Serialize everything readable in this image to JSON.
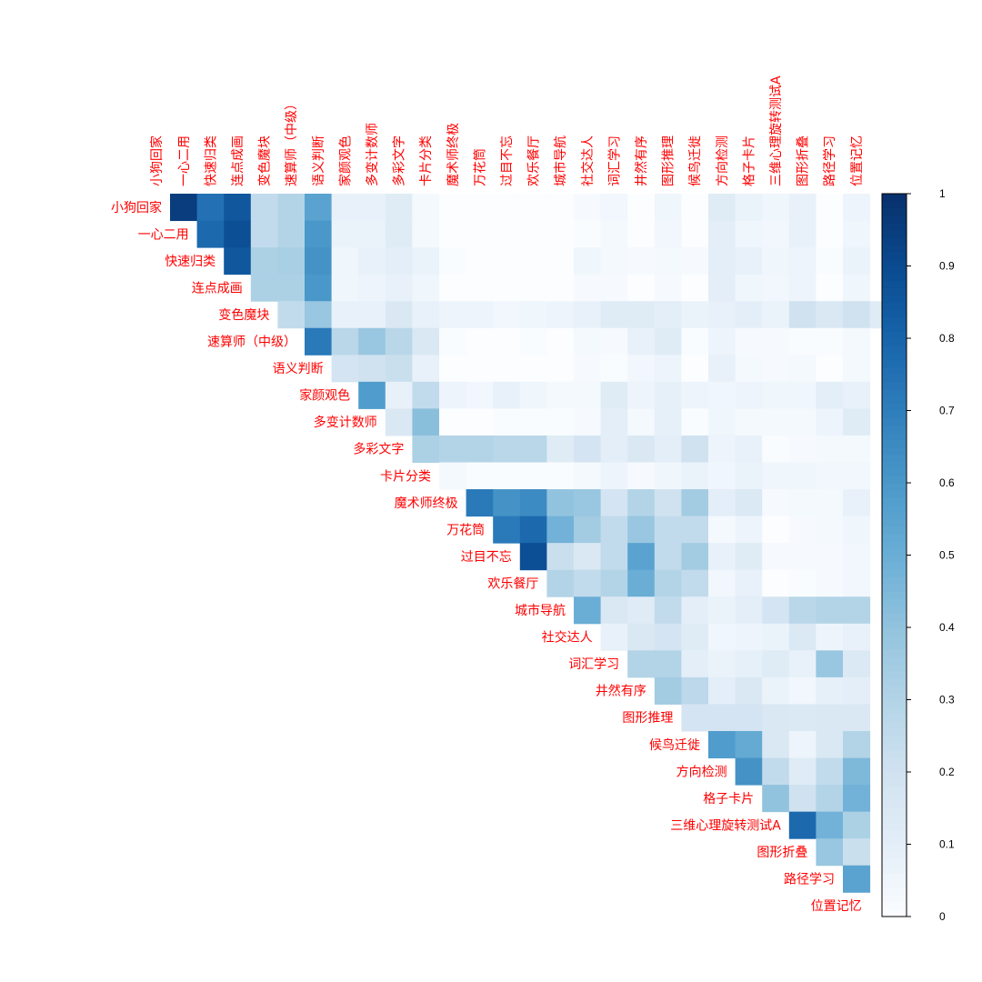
{
  "chart_data": {
    "type": "heatmap",
    "subtype": "correlation-upper-triangle-no-diagonal",
    "variables": [
      "小狗回家",
      "一心二用",
      "快速归类",
      "连点成画",
      "变色魔块",
      "速算师（中级）",
      "语义判断",
      "家颜观色",
      "多变计数师",
      "多彩文字",
      "卡片分类",
      "魔术师终极",
      "万花筒",
      "过目不忘",
      "欢乐餐厅",
      "城市导航",
      "社交达人",
      "词汇学习",
      "井然有序",
      "图形推理",
      "候鸟迁徙",
      "方向检测",
      "格子卡片",
      "三维心理旋转测试A",
      "图形折叠",
      "路径学习",
      "位置记忆"
    ],
    "upper_triangle_rows": [
      [
        0.95,
        0.75,
        0.85,
        0.25,
        0.3,
        0.55,
        0.08,
        0.08,
        0.12,
        0.03,
        0,
        0,
        0,
        0,
        0,
        0.02,
        0.04,
        0,
        0.05,
        0,
        0.12,
        0.07,
        0.05,
        0.08,
        0,
        0.06
      ],
      [
        0.78,
        0.88,
        0.25,
        0.3,
        0.6,
        0.07,
        0.07,
        0.12,
        0.03,
        0,
        0,
        0,
        0,
        0,
        0.01,
        0.03,
        0,
        0.04,
        0,
        0.1,
        0.05,
        0.04,
        0.08,
        0,
        0.05
      ],
      [
        0.85,
        0.32,
        0.33,
        0.62,
        0.05,
        0.08,
        0.1,
        0.07,
        0.01,
        0,
        0,
        0,
        0,
        0.05,
        0.03,
        0.02,
        0.03,
        0.02,
        0.1,
        0.08,
        0.05,
        0.06,
        0.01,
        0.07
      ],
      [
        0.32,
        0.32,
        0.6,
        0.05,
        0.06,
        0.08,
        0.05,
        0,
        0,
        0,
        0,
        0,
        0.02,
        0.02,
        0,
        0.02,
        0,
        0.1,
        0.05,
        0.04,
        0.06,
        0,
        0.05
      ],
      [
        0.25,
        0.38,
        0.08,
        0.08,
        0.15,
        0.08,
        0.06,
        0.06,
        0.04,
        0.05,
        0.06,
        0.08,
        0.12,
        0.12,
        0.1,
        0.07,
        0.08,
        0.1,
        0.07,
        0.2,
        0.15,
        0.2,
        0.12
      ],
      [
        0.72,
        0.28,
        0.38,
        0.28,
        0.15,
        0.01,
        0,
        0,
        0.01,
        0,
        0.03,
        0.02,
        0.08,
        0.12,
        0.01,
        0.06,
        0.02,
        0.02,
        0.01,
        0.01,
        0.03
      ],
      [
        0.18,
        0.2,
        0.22,
        0.08,
        0,
        0,
        0,
        0,
        0,
        0.02,
        0.01,
        0.04,
        0.06,
        0,
        0.08,
        0.03,
        0.02,
        0.03,
        0,
        0.03
      ],
      [
        0.58,
        0.08,
        0.25,
        0.06,
        0.04,
        0.08,
        0.05,
        0.03,
        0.03,
        0.12,
        0.06,
        0.09,
        0.06,
        0.05,
        0.06,
        0.05,
        0.05,
        0.1,
        0.08
      ],
      [
        0.15,
        0.42,
        0,
        0,
        0.01,
        0.01,
        0.01,
        0.02,
        0.1,
        0.03,
        0.09,
        0.01,
        0.05,
        0.03,
        0.03,
        0.03,
        0.06,
        0.12
      ],
      [
        0.32,
        0.3,
        0.3,
        0.28,
        0.28,
        0.12,
        0.18,
        0.1,
        0.15,
        0.1,
        0.2,
        0.06,
        0.08,
        0.01,
        0.02,
        0.03,
        0.03
      ],
      [
        0.03,
        0.01,
        0.01,
        0.01,
        0.01,
        0.03,
        0.06,
        0.02,
        0.05,
        0.07,
        0.05,
        0.07,
        0.05,
        0.05,
        0.04,
        0.04
      ],
      [
        0.72,
        0.62,
        0.65,
        0.4,
        0.38,
        0.18,
        0.3,
        0.2,
        0.35,
        0.1,
        0.14,
        0.02,
        0.03,
        0.03,
        0.08
      ],
      [
        0.72,
        0.78,
        0.48,
        0.35,
        0.25,
        0.38,
        0.25,
        0.25,
        0.03,
        0.06,
        0,
        0.02,
        0.03,
        0.05
      ],
      [
        0.88,
        0.22,
        0.15,
        0.25,
        0.55,
        0.25,
        0.35,
        0.08,
        0.12,
        0.02,
        0.02,
        0.02,
        0.04
      ],
      [
        0.3,
        0.25,
        0.3,
        0.5,
        0.3,
        0.25,
        0.04,
        0.08,
        0,
        0.01,
        0.02,
        0.04
      ],
      [
        0.5,
        0.15,
        0.12,
        0.25,
        0.1,
        0.07,
        0.1,
        0.18,
        0.28,
        0.3,
        0.3
      ],
      [
        0.08,
        0.15,
        0.18,
        0.12,
        0.05,
        0.06,
        0.07,
        0.14,
        0.06,
        0.08
      ],
      [
        0.3,
        0.3,
        0.1,
        0.07,
        0.09,
        0.12,
        0.08,
        0.38,
        0.14
      ],
      [
        0.35,
        0.27,
        0.1,
        0.15,
        0.07,
        0.04,
        0.09,
        0.1
      ],
      [
        0.18,
        0.18,
        0.18,
        0.15,
        0.14,
        0.15,
        0.15
      ],
      [
        0.58,
        0.52,
        0.15,
        0.06,
        0.15,
        0.3
      ],
      [
        0.62,
        0.25,
        0.12,
        0.25,
        0.45
      ],
      [
        0.4,
        0.2,
        0.3,
        0.48
      ],
      [
        0.78,
        0.48,
        0.32
      ],
      [
        0.38,
        0.22
      ],
      [
        0.55
      ]
    ],
    "colorbar": {
      "range": [
        0,
        1
      ],
      "ticks": [
        "0",
        "0.1",
        "0.2",
        "0.3",
        "0.4",
        "0.5",
        "0.6",
        "0.7",
        "0.8",
        "0.9",
        "1"
      ],
      "colors": [
        "#fbfdff",
        "#e3eef8",
        "#d0e2f0",
        "#b3d4e7",
        "#92c3de",
        "#6aaed6",
        "#4a98c9",
        "#2f7ebc",
        "#1764ab",
        "#0a4a90",
        "#08306b"
      ]
    },
    "label_color": "#ff0000",
    "legend_placement": "right"
  }
}
